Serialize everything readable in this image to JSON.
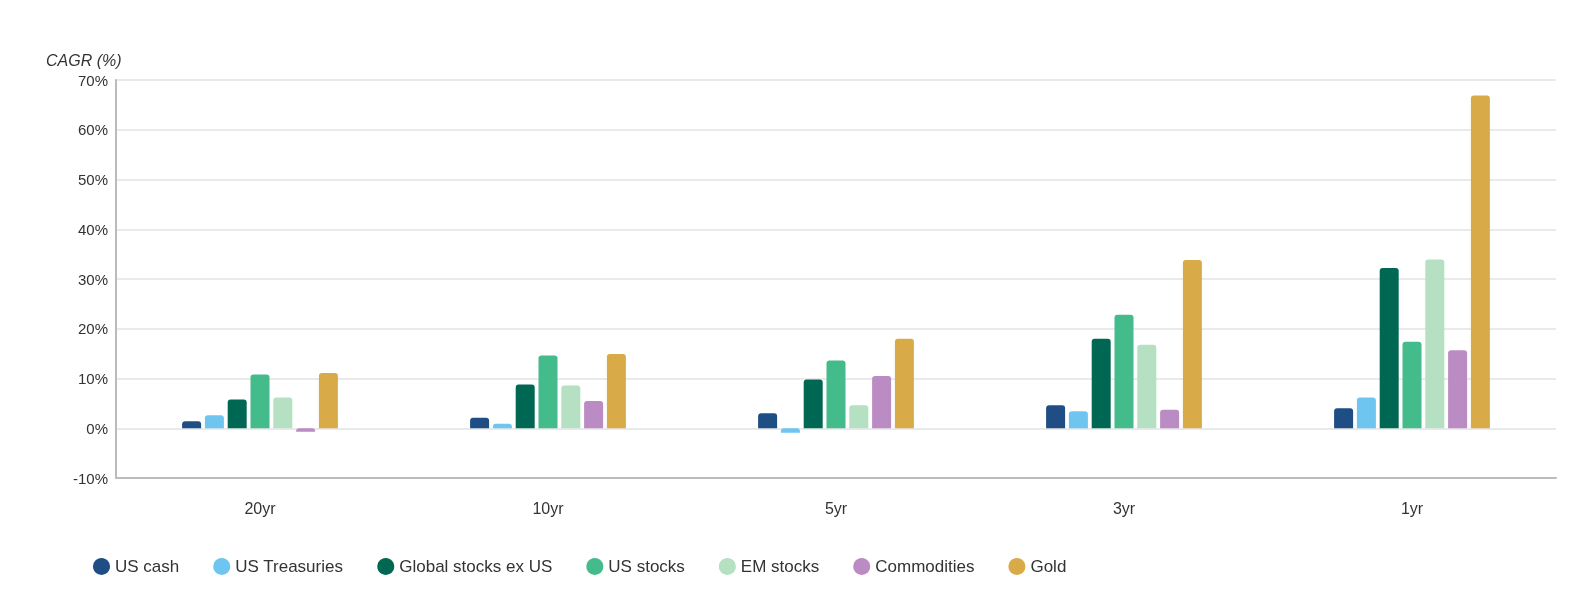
{
  "chart_data": {
    "type": "bar",
    "ylabel": "CAGR (%)",
    "categories": [
      "20yr",
      "10yr",
      "5yr",
      "3yr",
      "1yr"
    ],
    "series": [
      {
        "name": "US cash",
        "color": "#1f4e85",
        "values": [
          1.4,
          2.1,
          3.0,
          4.6,
          4.0
        ]
      },
      {
        "name": "US Treasuries",
        "color": "#6ec6f0",
        "values": [
          2.6,
          0.9,
          -0.9,
          3.4,
          6.2
        ]
      },
      {
        "name": "Global stocks ex US",
        "color": "#006752",
        "values": [
          5.8,
          8.8,
          9.8,
          18.0,
          32.2
        ]
      },
      {
        "name": "US stocks",
        "color": "#44bb8a",
        "values": [
          10.8,
          14.6,
          13.6,
          22.8,
          17.4
        ]
      },
      {
        "name": "EM stocks",
        "color": "#b5e0c2",
        "values": [
          6.2,
          8.6,
          4.6,
          16.8,
          33.9
        ]
      },
      {
        "name": "Commodities",
        "color": "#bb8cc3",
        "values": [
          -0.7,
          5.5,
          10.5,
          3.7,
          15.7
        ]
      },
      {
        "name": "Gold",
        "color": "#d8ab48",
        "values": [
          11.1,
          14.9,
          18.0,
          33.8,
          66.9
        ]
      }
    ],
    "ylim": [
      -10,
      70
    ],
    "yticks": [
      {
        "value": -10,
        "label": "-10%"
      },
      {
        "value": 0,
        "label": "0%"
      },
      {
        "value": 10,
        "label": "10%"
      },
      {
        "value": 20,
        "label": "20%"
      },
      {
        "value": 30,
        "label": "30%"
      },
      {
        "value": 40,
        "label": "40%"
      },
      {
        "value": 50,
        "label": "50%"
      },
      {
        "value": 60,
        "label": "60%"
      },
      {
        "value": 70,
        "label": "70%"
      }
    ],
    "grid": "y",
    "legend": "bottom left"
  }
}
